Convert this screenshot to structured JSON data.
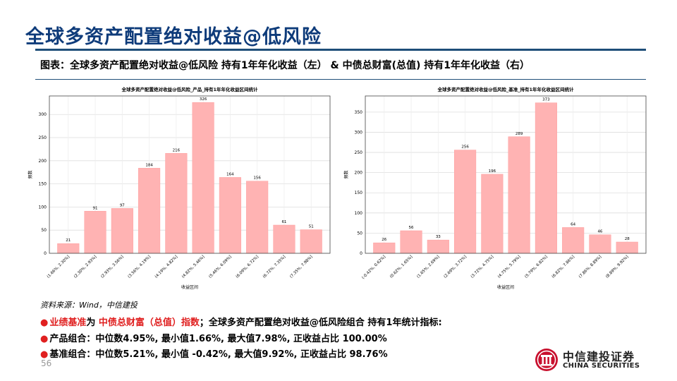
{
  "header": {
    "title": "全球多资产配置绝对收益@低风险",
    "caption": "图表：全球多资产配置绝对收益@低风险 持有1年年化收益（左） & 中债总财富(总值) 持有1年年化收益（右）"
  },
  "colors": {
    "title": "#0e3b7a",
    "bar": "#ffb3b3",
    "bar_edge": "#ff9e9e",
    "accent_red": "#e02020"
  },
  "chart_data": [
    {
      "type": "bar",
      "title": "全球多资产配置绝对收益@低风险_产品_持有1年年化收益区间统计",
      "xlabel": "收益区间",
      "ylabel": "频数",
      "ylim": [
        0,
        340
      ],
      "yticks": [
        0,
        50,
        100,
        150,
        200,
        250,
        300
      ],
      "grid": true,
      "categories": [
        "(1.66%, 2.30%]",
        "(2.30%, 2.93%]",
        "(2.93%, 3.56%]",
        "(3.56%, 4.19%]",
        "(4.19%, 4.82%]",
        "(4.82%, 5.46%]",
        "(5.46%, 6.09%]",
        "(6.09%, 6.72%]",
        "(6.72%, 7.35%]",
        "(7.35%, 7.98%]"
      ],
      "values": [
        21,
        91,
        97,
        184,
        216,
        326,
        164,
        156,
        61,
        51
      ]
    },
    {
      "type": "bar",
      "title": "全球多资产配置绝对收益@低风险_基准_持有1年年化收益区间统计",
      "xlabel": "收益区间",
      "ylabel": "频数",
      "ylim": [
        0,
        390
      ],
      "yticks": [
        0,
        50,
        100,
        150,
        200,
        250,
        300,
        350
      ],
      "grid": true,
      "categories": [
        "(-0.42%, 0.62%]",
        "(0.62%, 1.65%]",
        "(1.65%, 2.69%]",
        "(2.69%, 3.72%]",
        "(3.72%, 4.75%]",
        "(4.75%, 5.79%]",
        "(5.79%, 6.82%]",
        "(6.82%, 7.86%]",
        "(7.86%, 8.89%]",
        "(8.89%, 9.92%]"
      ],
      "values": [
        26,
        56,
        33,
        256,
        196,
        289,
        373,
        64,
        46,
        28
      ]
    }
  ],
  "footer": {
    "source": "资料来源：Wind，中信建投",
    "line1_a": "业绩基准",
    "line1_b": "为 ",
    "line1_c": "中债总财富（总值）指数",
    "line1_d": "；全球多资产配置绝对收益@低风险组合 持有1年统计指标:",
    "line2": "产品组合：中位数4.95%, 最小值1.66%, 最大值7.98%, 正收益占比 100.00%",
    "line3": "基准组合：中位数5.21%, 最小值 -0.42%, 最大值9.92%, 正收益占比 98.76%",
    "page_number": "56",
    "logo_cn": "中信建投证券",
    "logo_en": "CHINA SECURITIES"
  }
}
